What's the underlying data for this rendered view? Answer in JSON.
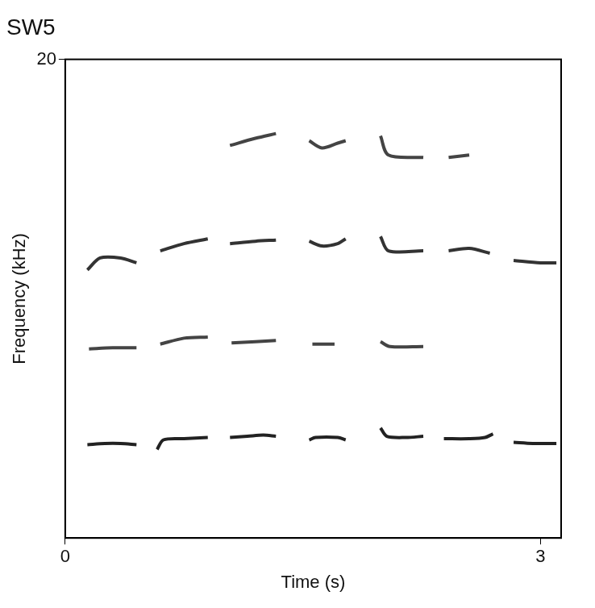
{
  "chart_data": {
    "type": "line",
    "title": "SW5",
    "x_label": "Time (s)",
    "y_label": "Frequency (kHz)",
    "xlim": [
      0,
      3.13
    ],
    "xticks": [
      0,
      3
    ],
    "ylim": [
      0,
      20
    ],
    "yticks": [
      20
    ],
    "grid": false,
    "marker": "none",
    "line_style": "solid",
    "series": [
      {
        "color": "#222222",
        "x": [
          0.14,
          0.25,
          0.35,
          0.45,
          null,
          0.58,
          0.62,
          0.75,
          0.9,
          null,
          1.04,
          1.15,
          1.25,
          1.33,
          null,
          1.54,
          1.58,
          1.72,
          1.77,
          null,
          1.99,
          2.03,
          2.15,
          2.26,
          null,
          2.39,
          2.55,
          2.65,
          2.7,
          null,
          2.83,
          2.95,
          3.1
        ],
        "values": [
          3.9,
          3.95,
          3.95,
          3.9,
          null,
          3.7,
          4.1,
          4.15,
          4.2,
          null,
          4.2,
          4.25,
          4.3,
          4.25,
          null,
          4.1,
          4.2,
          4.2,
          4.1,
          null,
          4.6,
          4.25,
          4.2,
          4.25,
          null,
          4.15,
          4.15,
          4.2,
          4.35,
          null,
          4.0,
          3.95,
          3.95
        ]
      },
      {
        "color": "#444444",
        "x": [
          0.15,
          0.3,
          0.45,
          null,
          0.6,
          0.75,
          0.9,
          null,
          1.05,
          1.2,
          1.33,
          null,
          1.56,
          1.7,
          null,
          1.99,
          2.05,
          2.26
        ],
        "values": [
          7.9,
          7.95,
          7.95,
          null,
          8.1,
          8.35,
          8.4,
          null,
          8.15,
          8.2,
          8.25,
          null,
          8.1,
          8.1,
          null,
          8.2,
          8.0,
          8.0
        ]
      },
      {
        "color": "#333333",
        "x": [
          0.14,
          0.22,
          0.35,
          0.45,
          null,
          0.6,
          0.75,
          0.9,
          null,
          1.04,
          1.2,
          1.33,
          null,
          1.54,
          1.62,
          1.72,
          1.77,
          null,
          1.99,
          2.04,
          2.26,
          null,
          2.42,
          2.55,
          2.68,
          null,
          2.83,
          3.0,
          3.1
        ],
        "values": [
          11.2,
          11.7,
          11.7,
          11.5,
          null,
          12.0,
          12.3,
          12.5,
          null,
          12.3,
          12.4,
          12.45,
          null,
          12.4,
          12.2,
          12.3,
          12.5,
          null,
          12.6,
          12.0,
          12.0,
          null,
          12.0,
          12.1,
          11.9,
          null,
          11.6,
          11.5,
          11.5
        ]
      },
      {
        "color": "#444444",
        "x": [
          1.04,
          1.2,
          1.33,
          null,
          1.54,
          1.62,
          1.72,
          1.77,
          null,
          1.99,
          2.04,
          2.26,
          null,
          2.42,
          2.55
        ],
        "values": [
          16.4,
          16.7,
          16.9,
          null,
          16.6,
          16.3,
          16.5,
          16.6,
          null,
          16.8,
          16.0,
          15.9,
          null,
          15.9,
          16.0
        ]
      }
    ]
  }
}
